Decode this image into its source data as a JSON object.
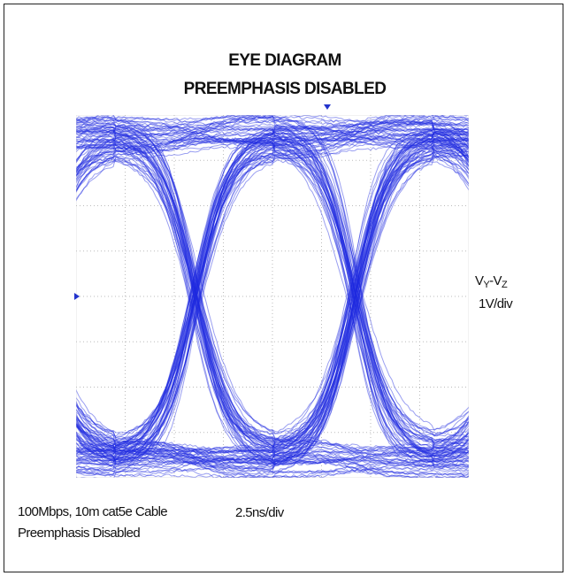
{
  "title": {
    "line1": "EYE DIAGRAM",
    "line2": "PREEMPHASIS DISABLED"
  },
  "vertical_label": {
    "v1": "V",
    "s1": "Y",
    "v2": "-V",
    "s2": "Z",
    "scale": "1V/div"
  },
  "horizontal_scale": "2.5ns/div",
  "caption": {
    "line1": "100Mbps, 10m cat5e Cable",
    "line2": "Preemphasis Disabled"
  }
}
